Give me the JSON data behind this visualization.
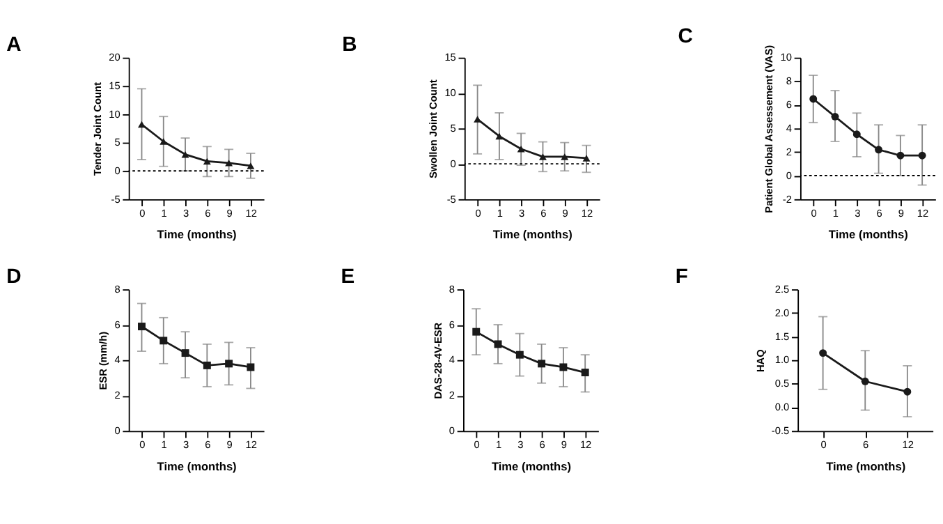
{
  "chart_data": [
    {
      "type": "line",
      "title": "A",
      "xlabel": "Time (months)",
      "ylabel": "Tender Joint Count",
      "categories": [
        "0",
        "1",
        "3",
        "6",
        "9",
        "12"
      ],
      "series": [
        {
          "color": "#1a1a1a",
          "values": [
            8.2,
            5.2,
            2.9,
            1.7,
            1.4,
            0.9
          ],
          "errors": [
            [
              2,
              14.5
            ],
            [
              0.8,
              9.6
            ],
            [
              0,
              5.8
            ],
            [
              -1,
              4.3
            ],
            [
              -1,
              3.8
            ],
            [
              -1.3,
              3.1
            ]
          ]
        }
      ],
      "ylim": [
        -5,
        20
      ],
      "yticks": [
        -5,
        0,
        5,
        10,
        15,
        20
      ],
      "marker": "triangle",
      "grid": false,
      "ref_lines": [
        {
          "axis": "y",
          "value": 0,
          "line_style": "dotted"
        }
      ]
    },
    {
      "type": "line",
      "title": "B",
      "xlabel": "Time (months)",
      "ylabel": "Swollen Joint Count",
      "categories": [
        "0",
        "1",
        "3",
        "6",
        "9",
        "12"
      ],
      "series": [
        {
          "color": "#1a1a1a",
          "values": [
            6.3,
            3.9,
            2.1,
            1.0,
            1.0,
            0.8
          ],
          "errors": [
            [
              1.4,
              11.1
            ],
            [
              0.6,
              7.2
            ],
            [
              -0.2,
              4.3
            ],
            [
              -1.1,
              3.1
            ],
            [
              -1,
              3
            ],
            [
              -1.2,
              2.6
            ]
          ]
        }
      ],
      "ylim": [
        -5,
        15
      ],
      "yticks": [
        -5,
        0,
        5,
        10,
        15
      ],
      "marker": "triangle",
      "grid": false,
      "ref_lines": [
        {
          "axis": "y",
          "value": 0,
          "line_style": "dotted"
        }
      ]
    },
    {
      "type": "line",
      "title": "C",
      "xlabel": "Time (months)",
      "ylabel": "Patient Global Assessement (VAS)",
      "categories": [
        "0",
        "1",
        "3",
        "6",
        "9",
        "12"
      ],
      "series": [
        {
          "color": "#1a1a1a",
          "values": [
            6.5,
            5.0,
            3.5,
            2.2,
            1.7,
            1.7
          ],
          "errors": [
            [
              4.5,
              8.5
            ],
            [
              2.9,
              7.2
            ],
            [
              1.6,
              5.3
            ],
            [
              0.2,
              4.3
            ],
            [
              0,
              3.4
            ],
            [
              -0.8,
              4.3
            ]
          ]
        }
      ],
      "ylim": [
        -2,
        10
      ],
      "yticks": [
        -2,
        0,
        2,
        4,
        6,
        8,
        10
      ],
      "marker": "circle",
      "grid": false,
      "ref_lines": [
        {
          "axis": "y",
          "value": 0,
          "line_style": "dotted"
        }
      ]
    },
    {
      "type": "line",
      "title": "D",
      "xlabel": "Time (months)",
      "ylabel": "ESR (mm/h)",
      "categories": [
        "0",
        "1",
        "3",
        "6",
        "9",
        "12"
      ],
      "series": [
        {
          "color": "#1a1a1a",
          "values": [
            5.9,
            5.1,
            4.4,
            3.7,
            3.8,
            3.6
          ],
          "errors": [
            [
              4.5,
              7.2
            ],
            [
              3.8,
              6.4
            ],
            [
              3.0,
              5.6
            ],
            [
              2.5,
              4.9
            ],
            [
              2.6,
              5.0
            ],
            [
              2.4,
              4.7
            ]
          ]
        }
      ],
      "ylim": [
        0,
        8
      ],
      "yticks": [
        0,
        2,
        4,
        6,
        8
      ],
      "marker": "square",
      "grid": false
    },
    {
      "type": "line",
      "title": "E",
      "xlabel": "Time (months)",
      "ylabel": "DAS-28-4V-ESR",
      "categories": [
        "0",
        "1",
        "3",
        "6",
        "9",
        "12"
      ],
      "series": [
        {
          "color": "#1a1a1a",
          "values": [
            5.6,
            4.9,
            4.3,
            3.8,
            3.6,
            3.3
          ],
          "errors": [
            [
              4.3,
              6.9
            ],
            [
              3.8,
              6.0
            ],
            [
              3.1,
              5.5
            ],
            [
              2.7,
              4.9
            ],
            [
              2.5,
              4.7
            ],
            [
              2.2,
              4.3
            ]
          ]
        }
      ],
      "ylim": [
        0,
        8
      ],
      "yticks": [
        0,
        2,
        4,
        6,
        8
      ],
      "marker": "square",
      "grid": false
    },
    {
      "type": "line",
      "title": "F",
      "xlabel": "Time (months)",
      "ylabel": "HAQ",
      "categories": [
        "0",
        "6",
        "12"
      ],
      "series": [
        {
          "color": "#1a1a1a",
          "values": [
            1.15,
            0.55,
            0.33
          ],
          "errors": [
            [
              0.38,
              1.92
            ],
            [
              -0.06,
              1.2
            ],
            [
              -0.2,
              0.88
            ]
          ]
        }
      ],
      "ylim": [
        -0.5,
        2.5
      ],
      "yticks": [
        -0.5,
        {
          "value": 0,
          "label": "0.0"
        },
        0.5,
        {
          "value": 1,
          "label": "1.0"
        },
        1.5,
        {
          "value": 2,
          "label": "2.0"
        },
        2.5
      ],
      "marker": "circle",
      "grid": false
    }
  ]
}
